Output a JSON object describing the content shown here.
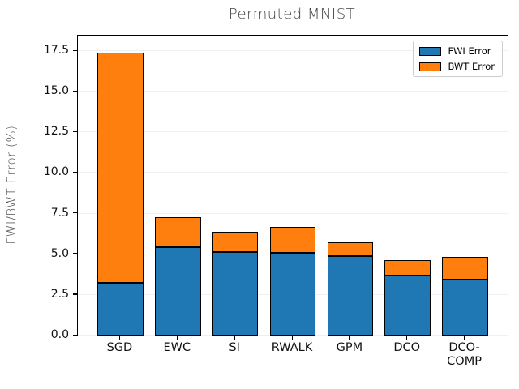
{
  "title": "Permuted MNIST",
  "chart_data": {
    "type": "bar",
    "stacked": true,
    "title": "Permuted MNIST",
    "xlabel": "",
    "ylabel": "FWI/BWT Error (%)",
    "categories": [
      "SGD",
      "EWC",
      "SI",
      "RWALK",
      "GPM",
      "DCO",
      "DCO-\nCOMP"
    ],
    "series": [
      {
        "name": "FWI Error",
        "color": "#1f77b4",
        "values": [
          3.25,
          5.45,
          5.15,
          5.1,
          4.9,
          3.7,
          3.45
        ]
      },
      {
        "name": "BWT Error",
        "color": "#ff7f0e",
        "values": [
          14.15,
          1.85,
          1.25,
          1.6,
          0.85,
          0.95,
          1.4
        ]
      }
    ],
    "totals": [
      17.4,
      7.3,
      6.4,
      6.7,
      5.75,
      4.65,
      4.85
    ],
    "yticks": [
      0.0,
      2.5,
      5.0,
      7.5,
      10.0,
      12.5,
      15.0,
      17.5
    ],
    "ytick_labels": [
      "0.0",
      "2.5",
      "5.0",
      "7.5",
      "10.0",
      "12.5",
      "15.0",
      "17.5"
    ],
    "ylim": [
      0,
      18.45
    ],
    "xlim": [
      -0.74,
      6.74
    ],
    "bar_width": 0.8,
    "grid": true,
    "grid_color": "#f0f0f0",
    "edge_color": "#000000",
    "legend_position": "upper right",
    "legend_entries": [
      "FWI Error",
      "BWT Error"
    ]
  }
}
